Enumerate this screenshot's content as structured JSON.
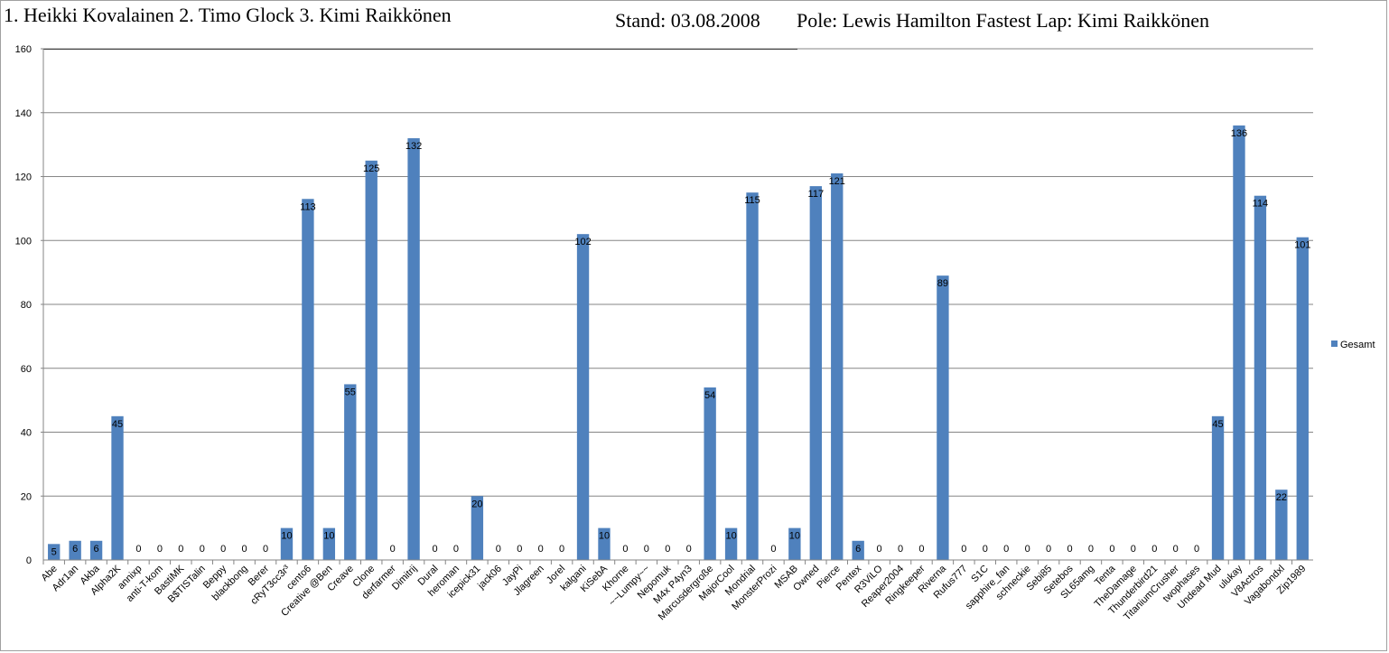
{
  "header": {
    "result_line": "1. Heikki Kovalainen 2. Timo Glock 3. Kimi Raikkönen",
    "stand": "Stand: 03.08.2008",
    "pole_fastest": "Pole: Lewis Hamilton Fastest Lap: Kimi Raikkönen"
  },
  "colors": {
    "bar": "#4f81bd",
    "grid": "#868686",
    "axis": "#868686"
  },
  "chart_data": {
    "type": "bar",
    "title": "",
    "xlabel": "",
    "ylabel": "",
    "ylim": [
      0,
      160
    ],
    "yticks": [
      0,
      20,
      40,
      60,
      80,
      100,
      120,
      140,
      160
    ],
    "grid": true,
    "legend": "right",
    "categories": [
      "Abe",
      "Adr1an",
      "Akba",
      "Alpha2K",
      "annixp",
      "anti-T-kom",
      "BastiMK",
      "B$TISTalin",
      "Beppy",
      "blackbong",
      "Berer",
      "cRyT3cc3r³",
      "cento6",
      "Creative @Ben",
      "Creave",
      "Clone",
      "derfarmer",
      "Dimitrij",
      "Dural",
      "heroman",
      "icepick31",
      "jack06",
      "JayPi",
      "Jlagreen",
      "Jorel",
      "kalgani",
      "KiSebA",
      "Khorne",
      "~~Lumpy~~",
      "Nepomuk",
      "M4x P4yn3",
      "Marcusdergroße",
      "MajorCool",
      "Mondrial",
      "MonsterProzi",
      "MSAB",
      "Owned",
      "Pierce",
      "Pentex",
      "R3ViLO",
      "Reaper2004",
      "Ringkeeper",
      "Riverna",
      "Rufus777",
      "S1C",
      "sapphire_fan",
      "schneckie",
      "Sebi85",
      "Setebos",
      "SL65amg",
      "Tenta",
      "TheDamage",
      "Thunderbird21",
      "TitaniumCrusher",
      "twophases",
      "Undead Mud",
      "ulukay",
      "V8Actros",
      "Vagabondxl",
      "Zip1989"
    ],
    "series": [
      {
        "name": "Gesamt",
        "values": [
          5,
          6,
          6,
          45,
          0,
          0,
          0,
          0,
          0,
          0,
          0,
          10,
          113,
          10,
          55,
          125,
          0,
          132,
          0,
          0,
          20,
          0,
          0,
          0,
          0,
          102,
          10,
          0,
          0,
          0,
          0,
          54,
          10,
          115,
          0,
          10,
          117,
          121,
          6,
          0,
          0,
          0,
          89,
          0,
          0,
          0,
          0,
          0,
          0,
          0,
          0,
          0,
          0,
          0,
          0,
          45,
          136,
          114,
          22,
          101
        ]
      }
    ]
  }
}
